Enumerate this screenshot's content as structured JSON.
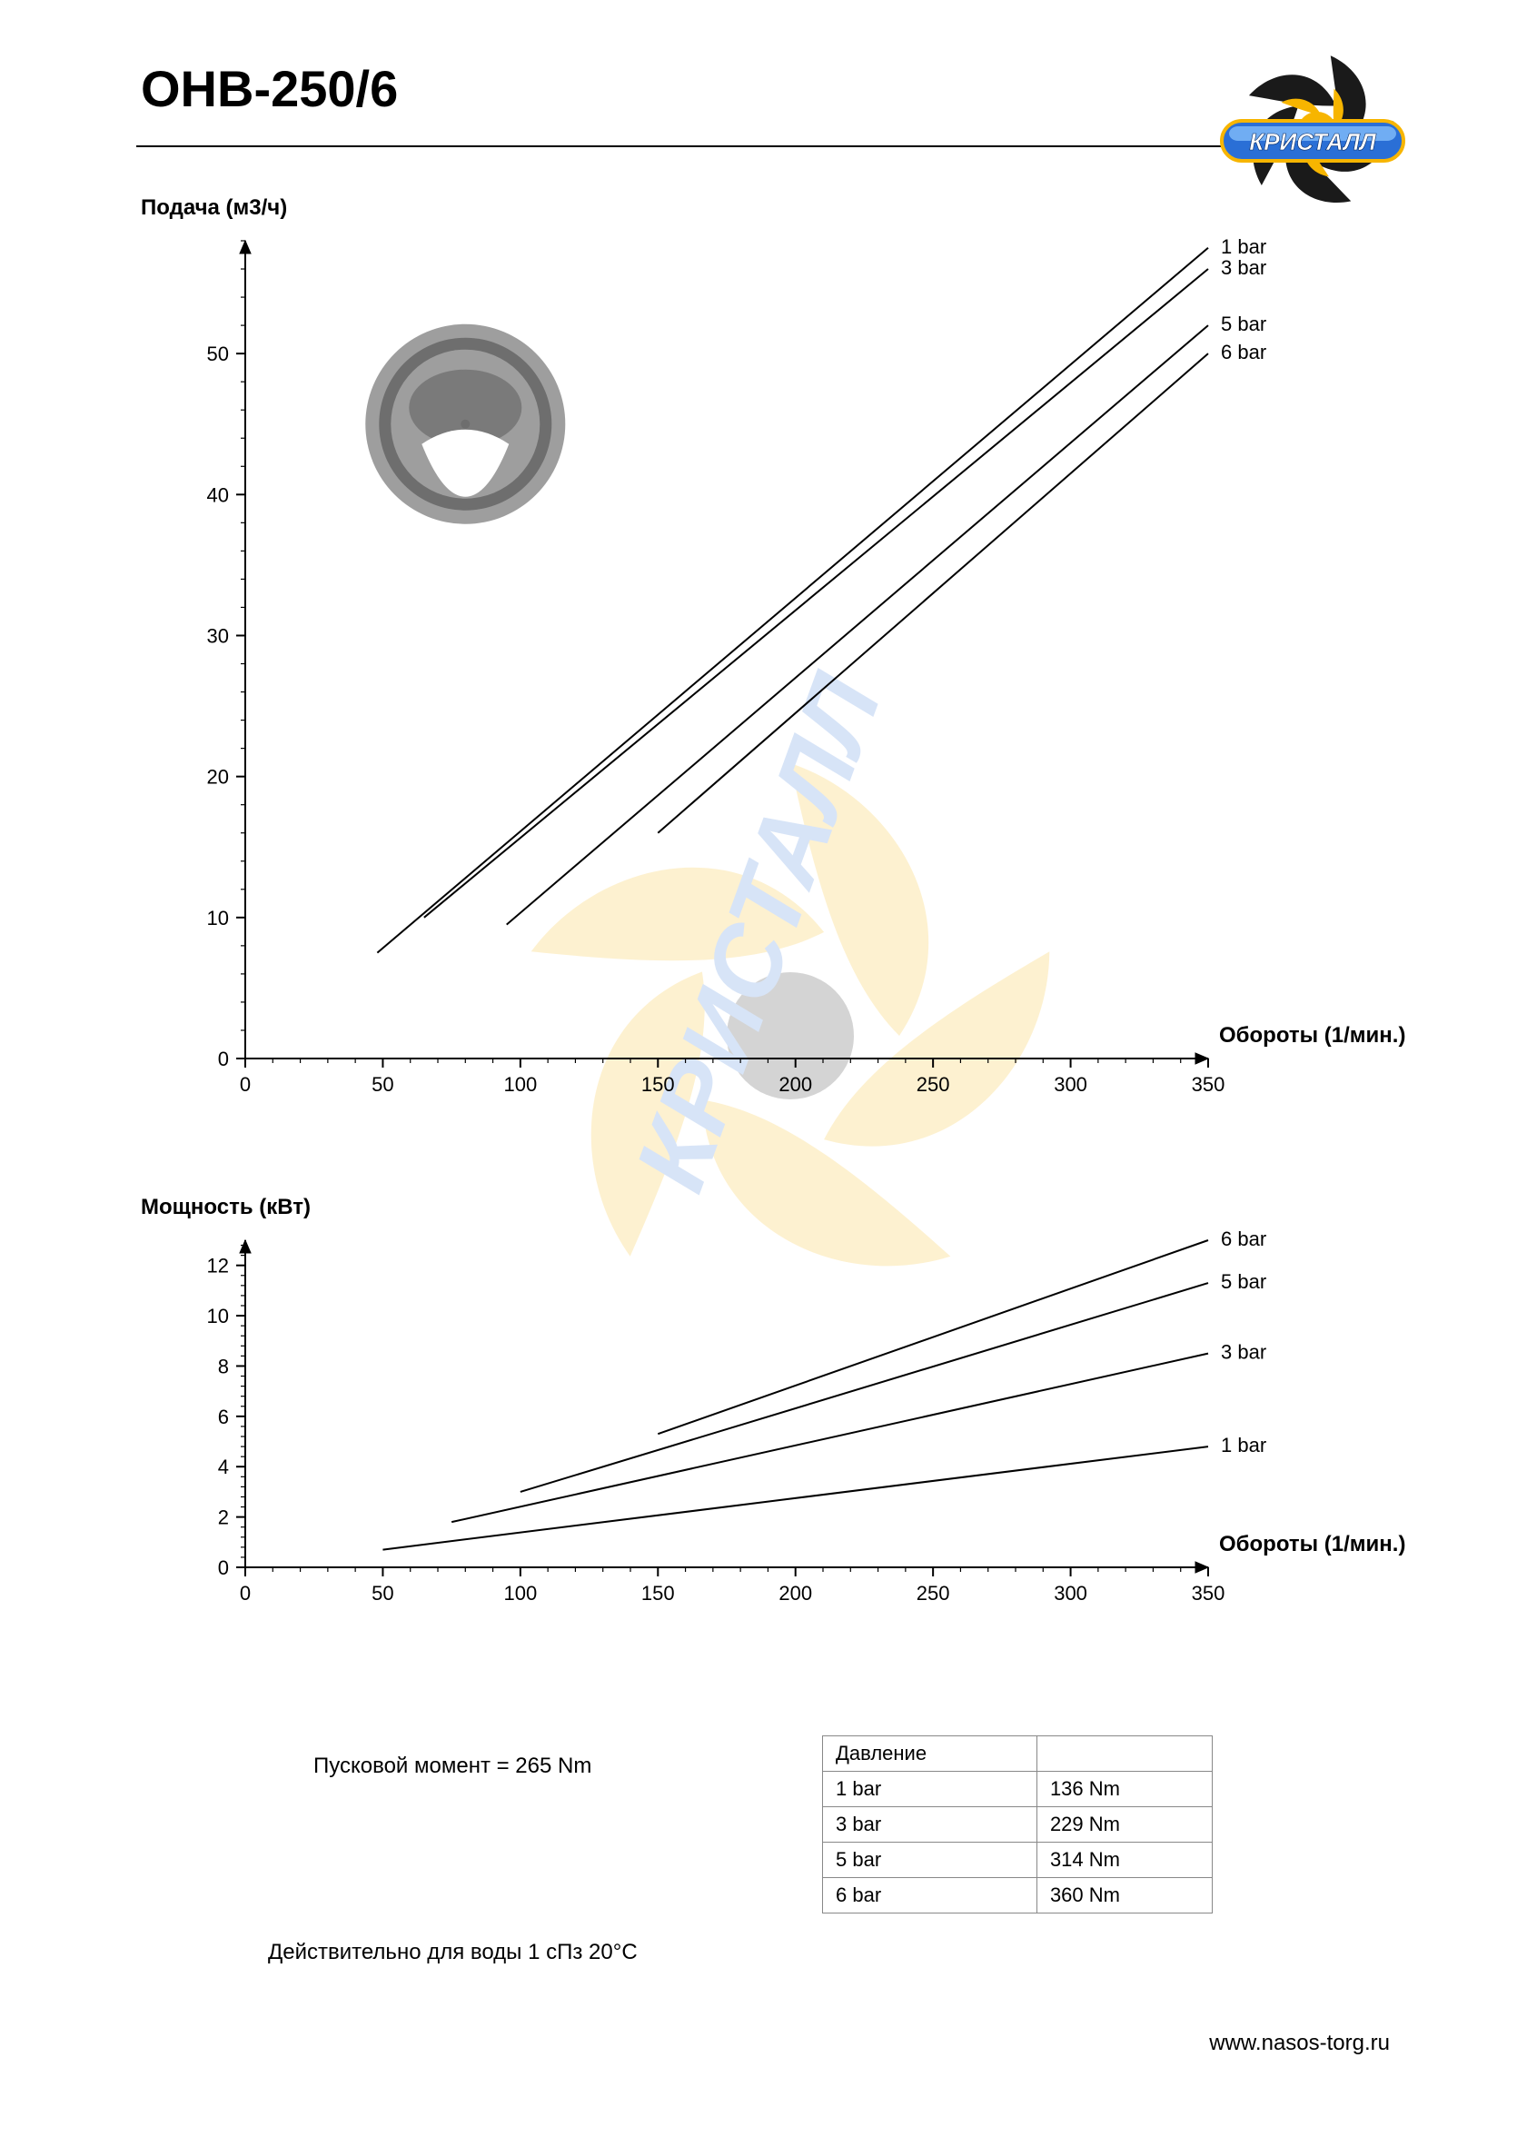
{
  "title": "ОНВ-250/6",
  "brand": "КРИСТАЛЛ",
  "footer_url": "www.nasos-torg.ru",
  "notes": {
    "starting_torque": "Пусковой момент = 265 Nm",
    "validity": "Действительно для воды 1 сПз 20°C"
  },
  "torque_table": {
    "header": "Давление",
    "rows": [
      {
        "pressure": "1 bar",
        "torque": "136 Nm"
      },
      {
        "pressure": "3 bar",
        "torque": "229 Nm"
      },
      {
        "pressure": "5 bar",
        "torque": "314 Nm"
      },
      {
        "pressure": "6 bar",
        "torque": "360 Nm"
      }
    ]
  },
  "chart_flow": {
    "type": "line",
    "title": "Подача (м3/ч)",
    "xlabel": "Обороты (1/мин.)",
    "xlim": [
      0,
      350
    ],
    "xtick_step": 50,
    "ylim": [
      0,
      58
    ],
    "yticks": [
      0,
      10,
      20,
      30,
      40,
      50
    ],
    "line_color": "#000000",
    "line_width": 2,
    "grid": false,
    "font_size_labels": 22,
    "font_size_title": 24,
    "series": [
      {
        "label": "1 bar",
        "points": [
          [
            48,
            7.5
          ],
          [
            350,
            57.5
          ]
        ]
      },
      {
        "label": "3 bar",
        "points": [
          [
            65,
            10
          ],
          [
            350,
            56
          ]
        ]
      },
      {
        "label": "5 bar",
        "points": [
          [
            95,
            9.5
          ],
          [
            350,
            52
          ]
        ]
      },
      {
        "label": "6 bar",
        "points": [
          [
            150,
            16
          ],
          [
            350,
            50
          ]
        ]
      }
    ]
  },
  "chart_power": {
    "type": "line",
    "title": "Мощность (кВт)",
    "xlabel": "Обороты (1/мин.)",
    "xlim": [
      0,
      350
    ],
    "xtick_step": 50,
    "ylim": [
      0,
      13
    ],
    "yticks": [
      0,
      2,
      4,
      6,
      8,
      10,
      12
    ],
    "line_color": "#000000",
    "line_width": 2,
    "grid": false,
    "font_size_labels": 22,
    "font_size_title": 24,
    "series": [
      {
        "label": "6 bar",
        "points": [
          [
            150,
            5.3
          ],
          [
            350,
            13
          ]
        ]
      },
      {
        "label": "5 bar",
        "points": [
          [
            100,
            3.0
          ],
          [
            350,
            11.3
          ]
        ]
      },
      {
        "label": "3 bar",
        "points": [
          [
            75,
            1.8
          ],
          [
            350,
            8.5
          ]
        ]
      },
      {
        "label": "1 bar",
        "points": [
          [
            50,
            0.7
          ],
          [
            350,
            4.8
          ]
        ]
      }
    ]
  },
  "colors": {
    "text": "#000000",
    "axis": "#000000",
    "logo_blade_dark": "#1a1a1a",
    "logo_blade_accent": "#f7b500",
    "logo_pill_fill": "#2a6fd6",
    "logo_pill_highlight": "#8fc8ff",
    "logo_pill_stroke": "#f7b500",
    "logo_text": "#ffffff",
    "cross_section_outer": "#9e9e9e",
    "cross_section_dark": "#6e6e6e",
    "cross_section_lobe": "#7a7a7a",
    "cross_section_white": "#ffffff",
    "table_border": "#888888"
  }
}
